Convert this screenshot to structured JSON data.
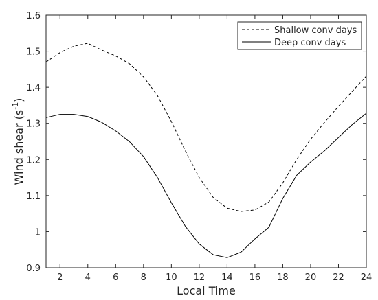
{
  "chart_data": {
    "type": "line",
    "xlabel": "Local Time",
    "ylabel_main": "Wind shear (s",
    "ylabel_exp": "-1",
    "ylabel_close": ")",
    "xlim": [
      1,
      24
    ],
    "ylim": [
      0.9,
      1.6
    ],
    "xticks": [
      2,
      4,
      6,
      8,
      10,
      12,
      14,
      16,
      18,
      20,
      22,
      24
    ],
    "yticks": [
      0.9,
      1,
      1.1,
      1.2,
      1.3,
      1.4,
      1.5,
      1.6
    ],
    "ytick_labels": [
      "0.9",
      "1",
      "1.1",
      "1.2",
      "1.3",
      "1.4",
      "1.5",
      "1.6"
    ],
    "legend_position": "top-right",
    "x": [
      1,
      2,
      3,
      4,
      5,
      6,
      7,
      8,
      9,
      10,
      11,
      12,
      13,
      14,
      15,
      16,
      17,
      18,
      19,
      20,
      21,
      22,
      23,
      24
    ],
    "series": [
      {
        "name": "Shallow conv days",
        "style": "dashed",
        "values": [
          1.47,
          1.496,
          1.514,
          1.522,
          1.503,
          1.487,
          1.465,
          1.429,
          1.377,
          1.305,
          1.224,
          1.15,
          1.095,
          1.065,
          1.056,
          1.06,
          1.082,
          1.135,
          1.2,
          1.256,
          1.303,
          1.347,
          1.389,
          1.431
        ]
      },
      {
        "name": "Deep conv days",
        "style": "solid",
        "values": [
          1.316,
          1.325,
          1.325,
          1.319,
          1.303,
          1.279,
          1.249,
          1.208,
          1.15,
          1.08,
          1.015,
          0.966,
          0.936,
          0.928,
          0.943,
          0.98,
          1.012,
          1.092,
          1.156,
          1.193,
          1.224,
          1.261,
          1.297,
          1.328
        ]
      }
    ]
  }
}
